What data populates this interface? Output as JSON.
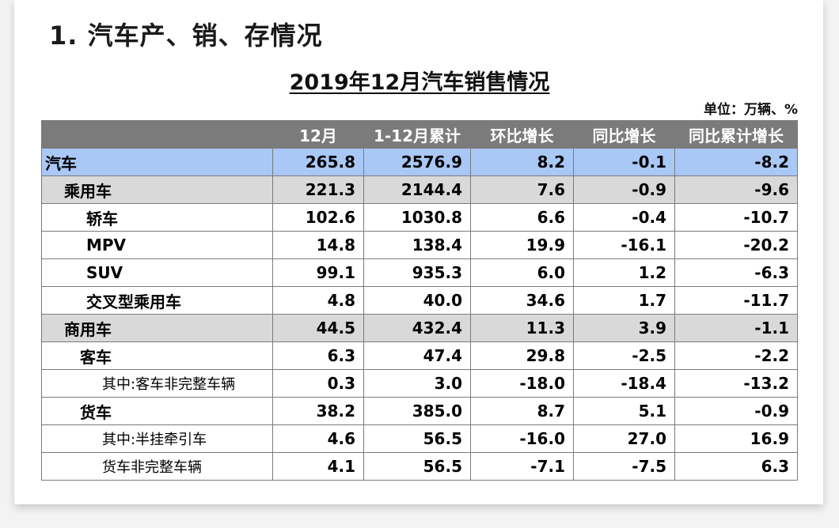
{
  "heading": "1. 汽车产、销、存情况",
  "table_title": "2019年12月汽车销售情况",
  "unit": "单位：万辆、%",
  "columns": [
    "12月",
    "1-12月累计",
    "环比增长",
    "同比增长",
    "同比累计增长"
  ],
  "rows": [
    {
      "label": "汽车",
      "values": [
        "265.8",
        "2576.9",
        "8.2",
        "-0.1",
        "-8.2"
      ]
    },
    {
      "label": "乘用车",
      "values": [
        "221.3",
        "2144.4",
        "7.6",
        "-0.9",
        "-9.6"
      ]
    },
    {
      "label": "轿车",
      "values": [
        "102.6",
        "1030.8",
        "6.6",
        "-0.4",
        "-10.7"
      ]
    },
    {
      "label": "MPV",
      "values": [
        "14.8",
        "138.4",
        "19.9",
        "-16.1",
        "-20.2"
      ]
    },
    {
      "label": "SUV",
      "values": [
        "99.1",
        "935.3",
        "6.0",
        "1.2",
        "-6.3"
      ]
    },
    {
      "label": "交叉型乘用车",
      "values": [
        "4.8",
        "40.0",
        "34.6",
        "1.7",
        "-11.7"
      ]
    },
    {
      "label": "商用车",
      "values": [
        "44.5",
        "432.4",
        "11.3",
        "3.9",
        "-1.1"
      ]
    },
    {
      "label": "客车",
      "values": [
        "6.3",
        "47.4",
        "29.8",
        "-2.5",
        "-2.2"
      ]
    },
    {
      "label": "其中:客车非完整车辆",
      "values": [
        "0.3",
        "3.0",
        "-18.0",
        "-18.4",
        "-13.2"
      ]
    },
    {
      "label": "货车",
      "values": [
        "38.2",
        "385.0",
        "8.7",
        "5.1",
        "-0.9"
      ]
    },
    {
      "label": "其中:半挂牵引车",
      "values": [
        "4.6",
        "56.5",
        "-16.0",
        "27.0",
        "16.9"
      ]
    },
    {
      "label": "货车非完整车辆",
      "values": [
        "4.1",
        "56.5",
        "-7.1",
        "-7.5",
        "6.3"
      ]
    }
  ],
  "colors": {
    "header_bg": "#7b7b7b",
    "total_row_bg": "#a9c8f5",
    "group_row_bg": "#d9d9d9"
  }
}
